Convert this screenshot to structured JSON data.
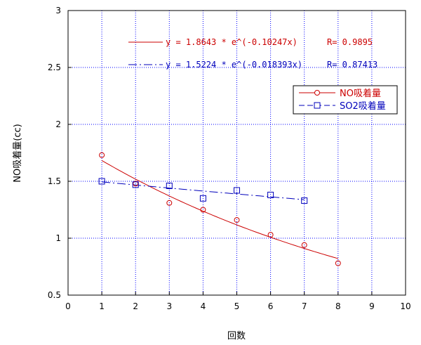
{
  "chart_data": {
    "type": "scatter",
    "title": "",
    "xlabel": "回数",
    "ylabel": "NO吸着量(cc)",
    "xlim": [
      0,
      10
    ],
    "ylim": [
      0.5,
      3
    ],
    "xticks": [
      0,
      1,
      2,
      3,
      4,
      5,
      6,
      7,
      8,
      9,
      10
    ],
    "yticks": [
      0.5,
      1,
      1.5,
      2,
      2.5,
      3
    ],
    "xtick_labels": [
      "0",
      "1",
      "2",
      "3",
      "4",
      "5",
      "6",
      "7",
      "8",
      "9",
      "10"
    ],
    "ytick_labels": [
      "0.5",
      "1",
      "1.5",
      "2",
      "2.5",
      "3"
    ],
    "grid": true,
    "legend_position": "right",
    "series": [
      {
        "name": "NO吸着量",
        "color": "#cc0000",
        "marker": "circle",
        "x": [
          1,
          2,
          3,
          4,
          5,
          6,
          7,
          8
        ],
        "y": [
          1.73,
          1.48,
          1.31,
          1.25,
          1.16,
          1.03,
          0.94,
          0.78
        ],
        "fit": {
          "a": 1.8643,
          "b": -0.10247,
          "xrange": [
            1,
            8
          ],
          "line_style": "solid"
        },
        "fit_label": "y = 1.8643 * e^(-0.10247x)",
        "r_label": "R= 0.9895"
      },
      {
        "name": "SO2吸着量",
        "color": "#0000bb",
        "marker": "square",
        "x": [
          1,
          2,
          3,
          4,
          5,
          6,
          7
        ],
        "y": [
          1.5,
          1.47,
          1.46,
          1.35,
          1.42,
          1.38,
          1.33
        ],
        "fit": {
          "a": 1.5224,
          "b": -0.018393,
          "xrange": [
            1,
            7
          ],
          "line_style": "dashed"
        },
        "fit_label": "y = 1.5224 * e^(-0.018393x)",
        "r_label": "R= 0.87413"
      }
    ]
  }
}
